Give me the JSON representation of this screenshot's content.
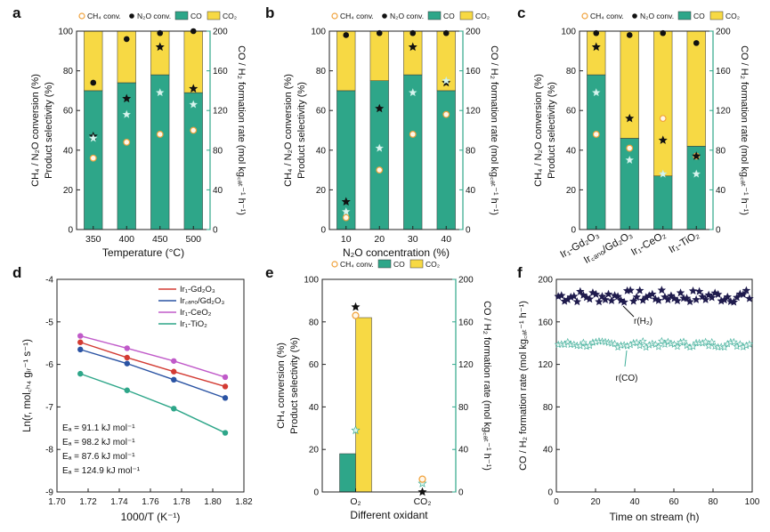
{
  "colors": {
    "co": "#2ea689",
    "co2": "#f7d944",
    "ch4": "#f0a23c",
    "n2o": "#111111",
    "rate_ratio": "#d9f5ef",
    "h2_series": "#1f1b4d",
    "co_series": "#3fae99",
    "ir_gd2o3": "#d33b33",
    "ir_nano": "#2a53a3",
    "ir_ceo2": "#c05ac9",
    "ir_tio2": "#2ea689"
  },
  "chart_data": [
    {
      "panel": "a",
      "type": "bar",
      "legend": [
        "CH₄ conv.",
        "N₂O conv.",
        "CO",
        "CO₂"
      ],
      "categories": [
        "350",
        "400",
        "450",
        "500"
      ],
      "xlabel": "Temperature (°C)",
      "ylabel_left": "Product selectivity (%)",
      "ylabel_left2": "CH₄ / N₂O conversion (%)",
      "ylabel_right": "CO / H₂ formation rate (mol kg꜀ₐₜ⁻¹ h⁻¹)",
      "ylim_left": [
        0,
        100
      ],
      "ylim_right": [
        0,
        200
      ],
      "yticks_left": [
        "0",
        "20",
        "40",
        "60",
        "80",
        "100"
      ],
      "yticks_right": [
        "0",
        "40",
        "80",
        "120",
        "160",
        "200"
      ],
      "series": [
        {
          "name": "CO",
          "values": [
            70,
            74,
            78,
            69
          ]
        },
        {
          "name": "CO₂",
          "values": [
            30,
            26,
            22,
            31
          ]
        },
        {
          "name": "CH₄ conv.",
          "values": [
            36,
            44,
            48,
            50
          ]
        },
        {
          "name": "N₂O conv.",
          "values": [
            74,
            96,
            99,
            100
          ]
        },
        {
          "values": [
            94,
            132,
            184,
            142
          ]
        },
        {
          "values": [
            92,
            116,
            138,
            126
          ]
        }
      ]
    },
    {
      "panel": "b",
      "type": "bar",
      "legend": [
        "CH₄ conv.",
        "N₂O conv.",
        "CO",
        "CO₂"
      ],
      "categories": [
        "10",
        "20",
        "30",
        "40"
      ],
      "xlabel": "N₂O concentration (%)",
      "ylabel_left": "Product selectivity (%)",
      "ylabel_left2": "CH₄ / N₂O conversion (%)",
      "ylabel_right": "CO / H₂ formation rate (mol kg꜀ₐₜ⁻¹ h⁻¹)",
      "ylim_left": [
        0,
        100
      ],
      "ylim_right": [
        0,
        200
      ],
      "yticks_left": [
        "0",
        "20",
        "40",
        "60",
        "80",
        "100"
      ],
      "yticks_right": [
        "0",
        "40",
        "80",
        "120",
        "160",
        "200"
      ],
      "series": [
        {
          "name": "CO",
          "values": [
            70,
            75,
            78,
            70
          ]
        },
        {
          "name": "CO₂",
          "values": [
            30,
            25,
            22,
            30
          ]
        },
        {
          "name": "CH₄ conv.",
          "values": [
            6,
            30,
            48,
            58
          ]
        },
        {
          "name": "N₂O conv.",
          "values": [
            98,
            99,
            99,
            99
          ]
        },
        {
          "values": [
            28,
            122,
            184,
            148
          ]
        },
        {
          "values": [
            18,
            82,
            138,
            150
          ]
        }
      ]
    },
    {
      "panel": "c",
      "type": "bar",
      "legend": [
        "CH₄ conv.",
        "N₂O conv.",
        "CO",
        "CO₂"
      ],
      "categories": [
        "Ir₁-Gd₂O₃",
        "Ir꜀ₐₙₒ/Gd₂O₃",
        "Ir₁-CeO₂",
        "Ir₁-TiO₂"
      ],
      "ylabel_left": "Product selectivity (%)",
      "ylabel_left2": "CH₄ / N₂O conversion (%)",
      "ylabel_right": "CO / H₂ formation rate (mol kg꜀ₐₜ⁻¹ h⁻¹)",
      "ylim_left": [
        0,
        100
      ],
      "ylim_right": [
        0,
        200
      ],
      "yticks_left": [
        "0",
        "20",
        "40",
        "60",
        "80",
        "100"
      ],
      "yticks_right": [
        "0",
        "40",
        "80",
        "120",
        "160",
        "200"
      ],
      "series": [
        {
          "name": "CO",
          "values": [
            78,
            46,
            27,
            42
          ]
        },
        {
          "name": "CO₂",
          "values": [
            22,
            54,
            73,
            58
          ]
        },
        {
          "name": "CH₄ conv.",
          "values": [
            48,
            41,
            56,
            37
          ]
        },
        {
          "name": "N₂O conv.",
          "values": [
            99,
            98,
            99,
            94
          ]
        },
        {
          "values": [
            184,
            112,
            90,
            74
          ]
        },
        {
          "values": [
            138,
            70,
            56,
            56
          ]
        }
      ]
    },
    {
      "panel": "d",
      "type": "line",
      "xlabel": "1000/T (K⁻¹)",
      "ylabel": "Ln(r, mol꜀ₕ₄ gᵢᵣ⁻¹ s⁻¹)",
      "xlim": [
        1.7,
        1.82
      ],
      "ylim": [
        -9,
        -4
      ],
      "xticks": [
        "1.70",
        "1.72",
        "1.74",
        "1.76",
        "1.78",
        "1.80",
        "1.82"
      ],
      "yticks": [
        "-4",
        "-5",
        "-6",
        "-7",
        "-8",
        "-9"
      ],
      "x": [
        1.715,
        1.745,
        1.775,
        1.808
      ],
      "series": [
        {
          "name": "Ir₁-Gd₂O₃",
          "values": [
            -5.48,
            -5.84,
            -6.17,
            -6.52
          ]
        },
        {
          "name": "Ir꜀ₐₙₒ/Gd₂O₃",
          "values": [
            -5.65,
            -5.98,
            -6.36,
            -6.79
          ]
        },
        {
          "name": "Ir₁-CeO₂",
          "values": [
            -5.33,
            -5.62,
            -5.92,
            -6.3
          ]
        },
        {
          "name": "Ir₁-TiO₂",
          "values": [
            -6.22,
            -6.61,
            -7.04,
            -7.61
          ]
        }
      ],
      "annotations": [
        "Eₐ = 91.1 kJ mol⁻¹",
        "Eₐ = 98.2 kJ mol⁻¹",
        "Eₐ = 87.6 kJ mol⁻¹",
        "Eₐ = 124.9 kJ mol⁻¹"
      ]
    },
    {
      "panel": "e",
      "type": "bar",
      "legend": [
        "CH₄ conv.",
        "CO",
        "CO₂"
      ],
      "categories": [
        "O₂",
        "CO₂"
      ],
      "xlabel": "Different oxidant",
      "ylabel_left": "Product selectivity (%)",
      "ylabel_left2": "CH₄ conversion (%)",
      "ylabel_right": "CO / H₂ formation rate (mol kg꜀ₐₜ⁻¹ h⁻¹)",
      "ylim_left": [
        0,
        100
      ],
      "ylim_right": [
        0,
        200
      ],
      "yticks_left": [
        "0",
        "20",
        "40",
        "60",
        "80",
        "100"
      ],
      "yticks_right": [
        "0",
        "40",
        "80",
        "120",
        "160",
        "200"
      ],
      "series": [
        {
          "name": "CO",
          "values": [
            18,
            null
          ]
        },
        {
          "name": "CO₂",
          "values": [
            82,
            null
          ]
        },
        {
          "name": "CH₄ conv.",
          "values": [
            83,
            6
          ]
        },
        {
          "values": [
            174,
            0
          ]
        },
        {
          "values": [
            58,
            8
          ]
        }
      ]
    },
    {
      "panel": "f",
      "type": "scatter",
      "xlabel": "Time on stream (h)",
      "ylabel": "CO / H₂ formation rate (mol kg꜀ₐₜ⁻¹ h⁻¹)",
      "xlim": [
        0,
        100
      ],
      "ylim": [
        0,
        200
      ],
      "xticks": [
        "0",
        "20",
        "40",
        "60",
        "80",
        "100"
      ],
      "yticks": [
        "0",
        "40",
        "80",
        "120",
        "160",
        "200"
      ],
      "series": [
        {
          "name": "r(H₂)",
          "mean": 184,
          "spread": 6
        },
        {
          "name": "r(CO)",
          "mean": 139,
          "spread": 3
        }
      ]
    }
  ],
  "panel_letters": [
    "a",
    "b",
    "c",
    "d",
    "e",
    "f"
  ]
}
